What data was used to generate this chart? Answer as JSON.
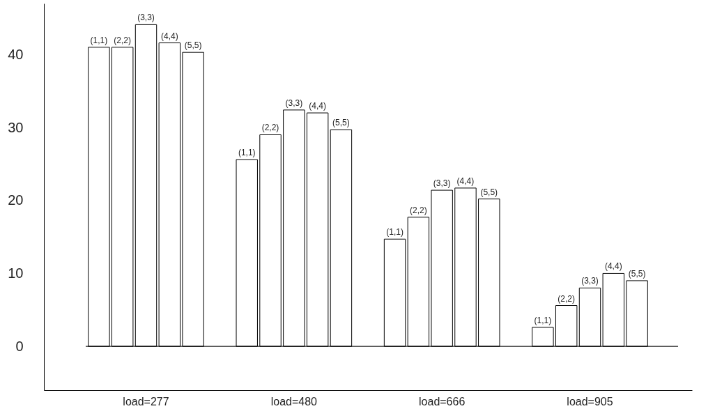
{
  "chart_data": {
    "type": "bar",
    "categories": [
      "load=277",
      "load=480",
      "load=666",
      "load=905"
    ],
    "series": [
      {
        "name": "(1,1)",
        "color": "#ffffff",
        "values": [
          41.0,
          25.6,
          14.7,
          2.6
        ]
      },
      {
        "name": "(2,2)",
        "color": "#ffffff",
        "values": [
          41.0,
          29.0,
          17.7,
          5.6
        ]
      },
      {
        "name": "(3,3)",
        "color": "#ffffff",
        "values": [
          44.1,
          32.4,
          21.4,
          8.0
        ]
      },
      {
        "name": "(4,4)",
        "color": "#ffffff",
        "values": [
          41.6,
          32.0,
          21.7,
          10.0
        ]
      },
      {
        "name": "(5,5)",
        "color": "#ffffff",
        "values": [
          40.3,
          29.7,
          20.2,
          9.0
        ]
      }
    ],
    "ylim": [
      -6,
      47
    ],
    "yticks": [
      0,
      10,
      20,
      30,
      40
    ],
    "grid": false,
    "legend": false,
    "ref_lines": [
      {
        "axis": "y",
        "value": 0,
        "label": null
      }
    ]
  }
}
